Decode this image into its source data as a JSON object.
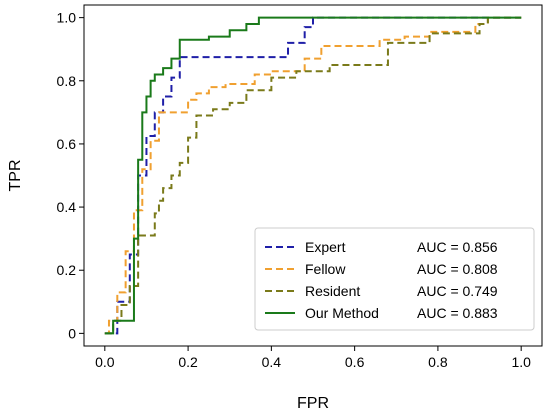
{
  "chart_data": {
    "type": "line",
    "title": "",
    "xlabel": "FPR",
    "ylabel": "TPR",
    "xlim": [
      -0.05,
      1.05
    ],
    "ylim": [
      -0.04,
      1.04
    ],
    "xticks": [
      "0.0",
      "0.2",
      "0.4",
      "0.6",
      "0.8",
      "1.0"
    ],
    "yticks": [
      "0",
      "0.2",
      "0.4",
      "0.6",
      "0.8",
      "1.0"
    ],
    "grid": false,
    "legend_position": "bottom-right",
    "series": [
      {
        "name": "Expert",
        "auc_label": "AUC = 0.856",
        "color": "#1f1fa8",
        "dash": "dashed",
        "x": [
          0,
          0.03,
          0.03,
          0.06,
          0.06,
          0.08,
          0.08,
          0.1,
          0.1,
          0.12,
          0.12,
          0.14,
          0.14,
          0.16,
          0.16,
          0.18,
          0.18,
          0.22,
          0.22,
          0.44,
          0.44,
          0.48,
          0.48,
          0.5,
          0.5,
          1.0
        ],
        "y": [
          0,
          0,
          0.1,
          0.1,
          0.25,
          0.25,
          0.5,
          0.5,
          0.625,
          0.625,
          0.7,
          0.7,
          0.75,
          0.75,
          0.81,
          0.81,
          0.875,
          0.875,
          0.875,
          0.875,
          0.92,
          0.92,
          0.97,
          0.97,
          1.0,
          1.0
        ]
      },
      {
        "name": "Fellow",
        "auc_label": "AUC = 0.808",
        "color": "#f0a030",
        "dash": "dashed",
        "x": [
          0,
          0.01,
          0.01,
          0.03,
          0.03,
          0.05,
          0.05,
          0.07,
          0.07,
          0.09,
          0.09,
          0.11,
          0.11,
          0.13,
          0.13,
          0.18,
          0.18,
          0.2,
          0.2,
          0.22,
          0.22,
          0.25,
          0.25,
          0.29,
          0.29,
          0.36,
          0.36,
          0.4,
          0.4,
          0.48,
          0.48,
          0.52,
          0.52,
          0.66,
          0.66,
          0.72,
          0.72,
          0.78,
          0.78,
          0.89,
          0.89,
          0.92,
          0.92,
          1.0
        ],
        "y": [
          0,
          0,
          0.04,
          0.04,
          0.13,
          0.13,
          0.26,
          0.26,
          0.39,
          0.39,
          0.52,
          0.52,
          0.61,
          0.61,
          0.7,
          0.7,
          0.7,
          0.7,
          0.74,
          0.74,
          0.76,
          0.76,
          0.78,
          0.78,
          0.79,
          0.79,
          0.82,
          0.82,
          0.83,
          0.83,
          0.87,
          0.87,
          0.91,
          0.91,
          0.93,
          0.93,
          0.94,
          0.94,
          0.955,
          0.955,
          0.98,
          0.98,
          1.0,
          1.0
        ]
      },
      {
        "name": "Resident",
        "auc_label": "AUC = 0.749",
        "color": "#7a7a1a",
        "dash": "dashed",
        "x": [
          0,
          0.02,
          0.02,
          0.04,
          0.04,
          0.06,
          0.06,
          0.08,
          0.08,
          0.1,
          0.1,
          0.12,
          0.12,
          0.13,
          0.13,
          0.14,
          0.14,
          0.16,
          0.16,
          0.18,
          0.18,
          0.2,
          0.2,
          0.22,
          0.22,
          0.26,
          0.26,
          0.3,
          0.3,
          0.34,
          0.34,
          0.4,
          0.4,
          0.46,
          0.46,
          0.54,
          0.54,
          0.64,
          0.64,
          0.68,
          0.68,
          0.78,
          0.78,
          0.9,
          0.9,
          0.92,
          0.92,
          1.0
        ],
        "y": [
          0,
          0,
          0.04,
          0.04,
          0.09,
          0.09,
          0.15,
          0.15,
          0.31,
          0.31,
          0.31,
          0.31,
          0.38,
          0.38,
          0.42,
          0.42,
          0.46,
          0.46,
          0.5,
          0.5,
          0.54,
          0.54,
          0.62,
          0.62,
          0.69,
          0.69,
          0.71,
          0.71,
          0.73,
          0.73,
          0.77,
          0.77,
          0.81,
          0.81,
          0.83,
          0.83,
          0.85,
          0.85,
          0.85,
          0.85,
          0.92,
          0.92,
          0.95,
          0.95,
          0.98,
          0.98,
          1.0,
          1.0
        ]
      },
      {
        "name": "Our Method",
        "auc_label": "AUC = 0.883",
        "color": "#1a7a1a",
        "dash": "solid",
        "x": [
          0,
          0.02,
          0.02,
          0.07,
          0.07,
          0.08,
          0.08,
          0.09,
          0.09,
          0.1,
          0.1,
          0.11,
          0.11,
          0.12,
          0.12,
          0.14,
          0.14,
          0.16,
          0.16,
          0.18,
          0.18,
          0.19,
          0.19,
          0.25,
          0.25,
          0.3,
          0.3,
          0.34,
          0.34,
          0.37,
          0.37,
          1.0
        ],
        "y": [
          0,
          0,
          0.04,
          0.04,
          0.3,
          0.3,
          0.55,
          0.55,
          0.7,
          0.7,
          0.75,
          0.75,
          0.8,
          0.8,
          0.82,
          0.82,
          0.84,
          0.84,
          0.87,
          0.87,
          0.93,
          0.93,
          0.93,
          0.93,
          0.94,
          0.94,
          0.96,
          0.96,
          0.98,
          0.98,
          1.0,
          1.0
        ]
      }
    ]
  }
}
